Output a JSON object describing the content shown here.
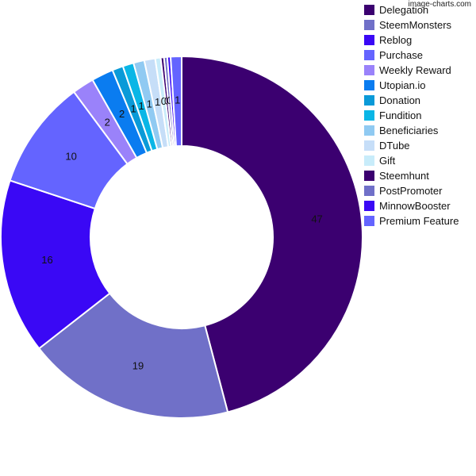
{
  "watermark": "image-charts.com",
  "chart_data": {
    "type": "pie",
    "donut": true,
    "title": "",
    "legend_position": "right",
    "series": [
      {
        "name": "Delegation",
        "value": 47,
        "color": "#3b0070"
      },
      {
        "name": "SteemMonsters",
        "value": 19,
        "color": "#7070c8"
      },
      {
        "name": "Reblog",
        "value": 16,
        "color": "#3a08f5"
      },
      {
        "name": "Purchase",
        "value": 10,
        "color": "#6464ff"
      },
      {
        "name": "Weekly Reward",
        "value": 2,
        "color": "#9a82fa"
      },
      {
        "name": "Utopian.io",
        "value": 2,
        "color": "#0a7cf0"
      },
      {
        "name": "Donation",
        "value": 1,
        "color": "#0a9ad8"
      },
      {
        "name": "Fundition",
        "value": 1,
        "color": "#0ab6e6"
      },
      {
        "name": "Beneficiaries",
        "value": 1,
        "color": "#90caf2"
      },
      {
        "name": "DTube",
        "value": 1,
        "color": "#c6def8"
      },
      {
        "name": "Gift",
        "value": 0.5,
        "color": "#c8ecfa"
      },
      {
        "name": "Steemhunt",
        "value": 0.3,
        "color": "#3b0070"
      },
      {
        "name": "PostPromoter",
        "value": 0.3,
        "color": "#7070c8"
      },
      {
        "name": "MinnowBooster",
        "value": 0.3,
        "color": "#3a08f5"
      },
      {
        "name": "Premium Feature",
        "value": 1,
        "color": "#6464ff"
      }
    ],
    "labels": [
      "47",
      "19",
      "16",
      "10",
      "2",
      "2",
      "1",
      "1",
      "1",
      "1",
      "0",
      "0",
      "0",
      "",
      "1"
    ]
  }
}
